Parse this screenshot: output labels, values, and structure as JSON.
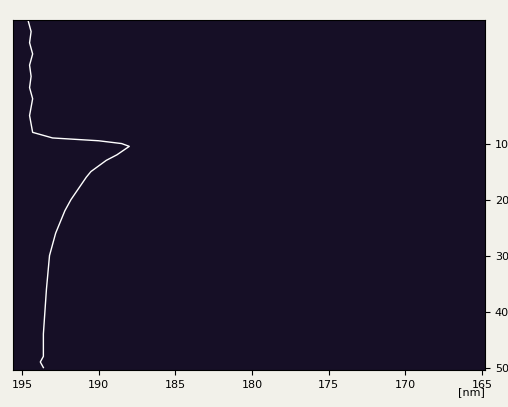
{
  "chart_data": {
    "type": "line",
    "x_label": "[nm]",
    "xlim": [
      195.6,
      164.8
    ],
    "xticks": [
      195,
      190,
      185,
      180,
      175,
      170,
      165
    ],
    "ylim": [
      50.5,
      -12
    ],
    "yticks": [
      10,
      20,
      30,
      40,
      50
    ],
    "grid": false,
    "series": [
      {
        "color": "#ffffff",
        "x": [
          194.6,
          194.4,
          194.5,
          194.3,
          194.5,
          194.4,
          194.5,
          194.3,
          194.5,
          194.3,
          193.0,
          190.0,
          188.5,
          188.0,
          188.8,
          189.5,
          190.0,
          190.5,
          190.8,
          191.3,
          191.8,
          192.2,
          192.5,
          192.8,
          193.0,
          193.2,
          193.3,
          193.4,
          193.5,
          193.6,
          193.6,
          193.8,
          193.6
        ],
        "values": [
          -12,
          -10,
          -8,
          -6,
          -4,
          -2,
          0,
          2,
          5,
          8,
          9,
          9.5,
          10,
          10.5,
          12,
          13,
          14,
          15,
          16,
          18,
          20,
          22,
          24,
          26,
          28,
          30,
          33,
          36,
          40,
          44,
          48,
          49,
          50
        ]
      }
    ]
  }
}
